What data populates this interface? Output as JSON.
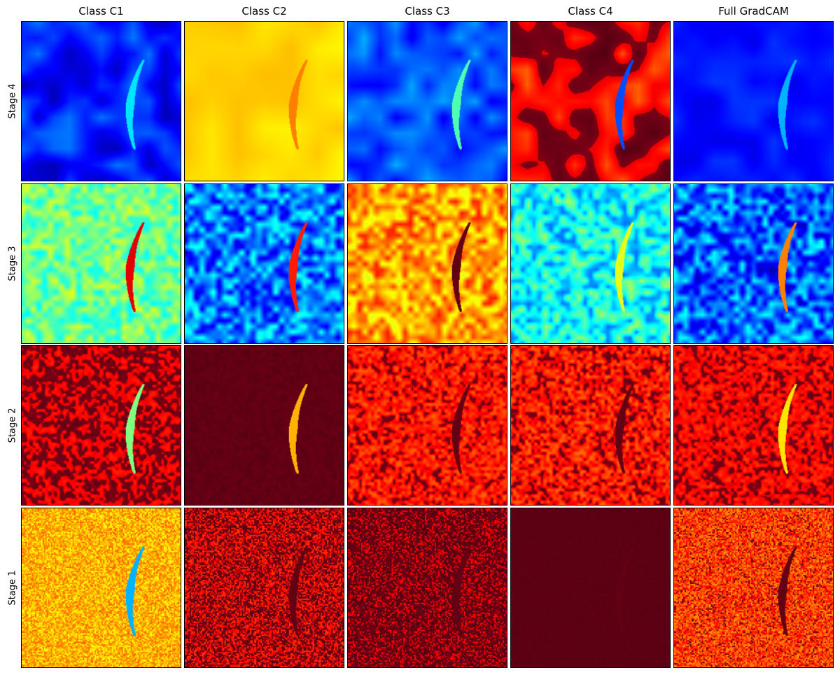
{
  "figure": {
    "column_titles": [
      "Class C1",
      "Class C2",
      "Class C3",
      "Class C4",
      "Full GradCAM"
    ],
    "row_labels": [
      "Stage 4",
      "Stage 3",
      "Stage 2",
      "Stage 1"
    ],
    "panels": [
      {
        "row": "Stage 4",
        "column": "Class C1",
        "description": "blue heatmap with small hotspot at bottom-right corner"
      },
      {
        "row": "Stage 4",
        "column": "Class C2",
        "description": "uniform yellow heatmap"
      },
      {
        "row": "Stage 4",
        "column": "Class C3",
        "description": "blue heatmap with cyan near bird and bottom-right"
      },
      {
        "row": "Stage 4",
        "column": "Class C4",
        "description": "red/orange heatmap, blue spot on bird body"
      },
      {
        "row": "Stage 4",
        "column": "Full GradCAM",
        "description": "mostly blue heatmap"
      },
      {
        "row": "Stage 3",
        "column": "Class C1",
        "description": "cyan/yellow blotchy heatmap"
      },
      {
        "row": "Stage 3",
        "column": "Class C2",
        "description": "blue/cyan blotchy heatmap"
      },
      {
        "row": "Stage 3",
        "column": "Class C3",
        "description": "orange/red blotchy heatmap"
      },
      {
        "row": "Stage 3",
        "column": "Class C4",
        "description": "cyan/blue blotchy heatmap"
      },
      {
        "row": "Stage 3",
        "column": "Full GradCAM",
        "description": "blue/cyan blotchy heatmap"
      },
      {
        "row": "Stage 2",
        "column": "Class C1",
        "description": "dark red speckled heatmap"
      },
      {
        "row": "Stage 2",
        "column": "Class C2",
        "description": "mostly dark red heatmap, sparse dots"
      },
      {
        "row": "Stage 2",
        "column": "Class C3",
        "description": "red speckled heatmap with yellow"
      },
      {
        "row": "Stage 2",
        "column": "Class C4",
        "description": "red speckled heatmap with yellow"
      },
      {
        "row": "Stage 2",
        "column": "Full GradCAM",
        "description": "dark red speckled heatmap"
      },
      {
        "row": "Stage 1",
        "column": "Class C1",
        "description": "yellow/orange fine-noise heatmap"
      },
      {
        "row": "Stage 1",
        "column": "Class C2",
        "description": "dark red fine-noise heatmap"
      },
      {
        "row": "Stage 1",
        "column": "Class C3",
        "description": "dark red fine-noise heatmap"
      },
      {
        "row": "Stage 1",
        "column": "Class C4",
        "description": "uniform dark red heatmap"
      },
      {
        "row": "Stage 1",
        "column": "Full GradCAM",
        "description": "red/orange fine-noise heatmap"
      }
    ]
  }
}
